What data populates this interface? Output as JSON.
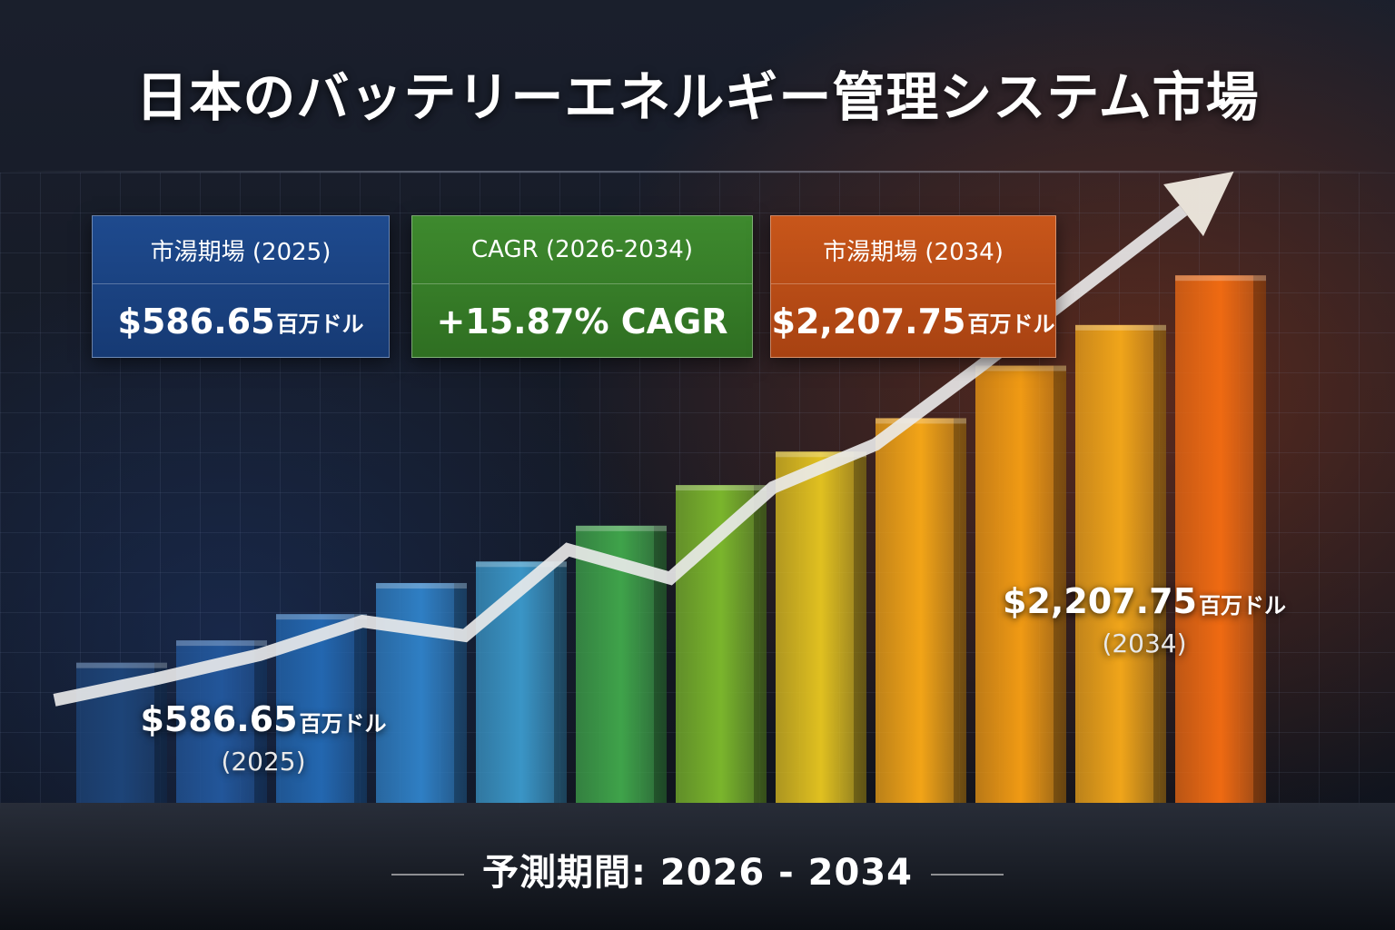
{
  "title": "日本のバッテリーエネルギー管理システム市場",
  "cards": [
    {
      "label": "市湯期場 (2025)",
      "value": "$586.65",
      "unit": "百万ドル"
    },
    {
      "label": "CAGR (2026-2034)",
      "value": "+15.87% CAGR",
      "unit": ""
    },
    {
      "label": "市湯期場 (2034)",
      "value": "$2,207.75",
      "unit": "百万ドル"
    }
  ],
  "annotations": {
    "start": {
      "value": "$586.65",
      "unit": "百万ドル",
      "year": "(2025)"
    },
    "end": {
      "value": "$2,207.75",
      "unit": "百万ドル",
      "year": "(2034)"
    }
  },
  "footer": "予測期間: 2026 - 2034",
  "chart_data": {
    "type": "bar",
    "categories": [
      "",
      "",
      "",
      "",
      "",
      "",
      "",
      "",
      "",
      "",
      "",
      ""
    ],
    "values": [
      586.65,
      680,
      790,
      920,
      1010,
      1160,
      1330,
      1470,
      1610,
      1830,
      2000,
      2207.75
    ],
    "trend_line": [
      430,
      520,
      620,
      760,
      700,
      1060,
      940,
      1320,
      1500,
      1820,
      2150,
      2480
    ],
    "ylim": [
      0,
      2600
    ],
    "colors": [
      "#1d4478",
      "#22569a",
      "#2367b0",
      "#2f7fc4",
      "#3a95c6",
      "#3fa34a",
      "#7ab52c",
      "#e0c020",
      "#f2a417",
      "#f09a14",
      "#f0a51a",
      "#ef6a12"
    ],
    "grid": true,
    "legend": "none"
  }
}
